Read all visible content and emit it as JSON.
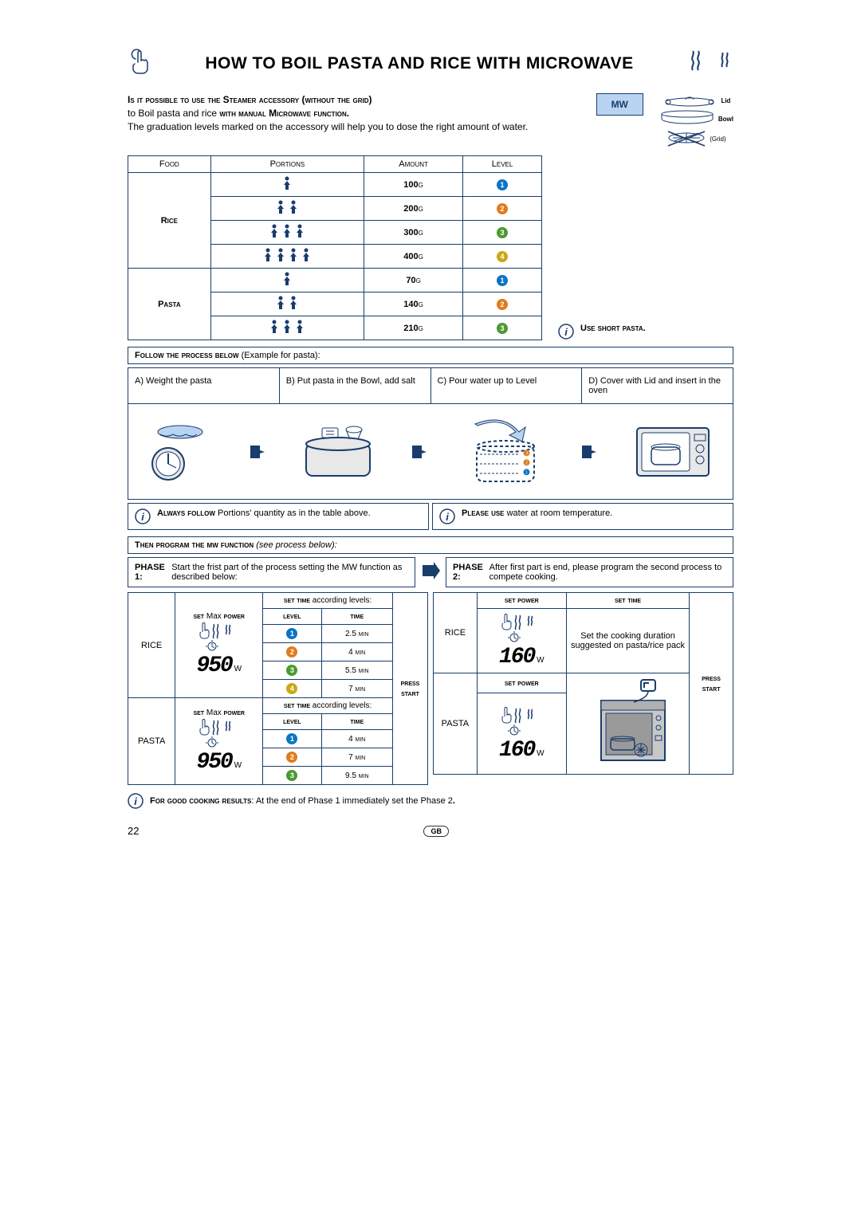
{
  "title": "HOW TO BOIL PASTA AND RICE WITH MICROWAVE",
  "intro": {
    "line1_sc": "Is it possible to use the Steamer accessory (without the grid)",
    "line2a": "to Boil pasta and rice ",
    "line2_sc": "with manual Microwave function.",
    "line3": "The graduation levels marked on the accessory will help you to dose the right amount of water."
  },
  "mw_badge": "MW",
  "accessory": {
    "lid": "Lid",
    "bowl": "Bowl",
    "grid": "(Grid)"
  },
  "table_headers": {
    "food": "Food",
    "portions": "Portions",
    "amount": "Amount",
    "level": "Level"
  },
  "rice_label": "Rice",
  "pasta_label": "Pasta",
  "rice_rows": [
    {
      "portions": 1,
      "amount": "100g",
      "level": 1,
      "color": "#0b74c4"
    },
    {
      "portions": 2,
      "amount": "200g",
      "level": 2,
      "color": "#e07b1e"
    },
    {
      "portions": 3,
      "amount": "300g",
      "level": 3,
      "color": "#4a9b2e"
    },
    {
      "portions": 4,
      "amount": "400g",
      "level": 4,
      "color": "#c9a818"
    }
  ],
  "pasta_rows": [
    {
      "portions": 1,
      "amount": "70g",
      "level": 1,
      "color": "#0b74c4"
    },
    {
      "portions": 2,
      "amount": "140g",
      "level": 2,
      "color": "#e07b1e"
    },
    {
      "portions": 3,
      "amount": "210g",
      "level": 3,
      "color": "#4a9b2e"
    }
  ],
  "use_short_pasta": "Use short pasta.",
  "process_header_sc": "Follow the process below",
  "process_header_rest": " (Example for pasta):",
  "steps": {
    "a": "A) Weight the pasta",
    "b": "B) Put pasta in the Bowl, add salt",
    "c": "C) Pour water up to Level",
    "d": "D) Cover with Lid and insert in the oven"
  },
  "tip1_sc": "Always follow",
  "tip1_rest": " Portions' quantity as in the table above.",
  "tip2_sc": "Please use",
  "tip2_rest": " water at room temperature.",
  "program_header_sc": "Then program the mw function",
  "program_header_em": " (see process below):",
  "phase1_label": "PHASE 1:",
  "phase1_text": "Start the frist part of the process setting the MW function as described below:",
  "phase2_label": "PHASE 2:",
  "phase2_text": "After first part is end, please program the second process to compete cooking.",
  "set_max_power_sc1": "set ",
  "set_max_power_max": "Max ",
  "set_max_power_sc2": "power",
  "set_time_acc": "set time",
  "according_levels": " according levels:",
  "level_hdr": "level",
  "time_hdr": "time",
  "set_power": "set power",
  "set_time": "set time",
  "press_start": "press start",
  "rice_lbl": "RICE",
  "pasta_lbl": "PASTA",
  "power_950": "950",
  "power_160": "160",
  "w": "W",
  "rice_times": [
    {
      "lvl": 1,
      "color": "#0b74c4",
      "t": "2.5 min"
    },
    {
      "lvl": 2,
      "color": "#e07b1e",
      "t": "4 min"
    },
    {
      "lvl": 3,
      "color": "#4a9b2e",
      "t": "5.5 min"
    },
    {
      "lvl": 4,
      "color": "#c9a818",
      "t": "7 min"
    }
  ],
  "pasta_times": [
    {
      "lvl": 1,
      "color": "#0b74c4",
      "t": "4 min"
    },
    {
      "lvl": 2,
      "color": "#e07b1e",
      "t": "7 min"
    },
    {
      "lvl": 3,
      "color": "#4a9b2e",
      "t": "9.5 min"
    }
  ],
  "phase2_rice_note": "Set the cooking duration suggested on pasta/rice pack",
  "footer_sc": "For good cooking results",
  "footer_rest": ":  At the end of Phase 1 immediately set the Phase 2",
  "page_num": "22",
  "gb": "GB"
}
